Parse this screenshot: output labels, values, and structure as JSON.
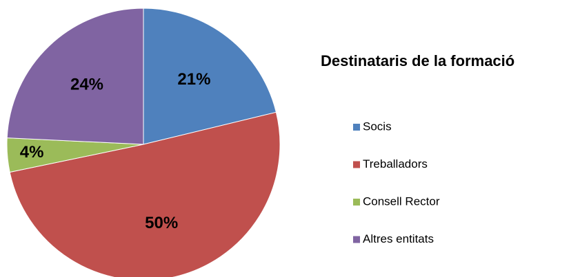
{
  "chart_data": {
    "type": "pie",
    "title": "Destinataris de la formació",
    "categories": [
      "Socis",
      "Treballadors",
      "Consell Rector",
      "Altres entitats"
    ],
    "values": [
      21,
      50,
      4,
      24
    ],
    "value_labels": [
      "21%",
      "50%",
      "4%",
      "24%"
    ],
    "colors": [
      "#4f81bd",
      "#c0504d",
      "#9bbb59",
      "#8064a2"
    ],
    "legend": "right"
  }
}
